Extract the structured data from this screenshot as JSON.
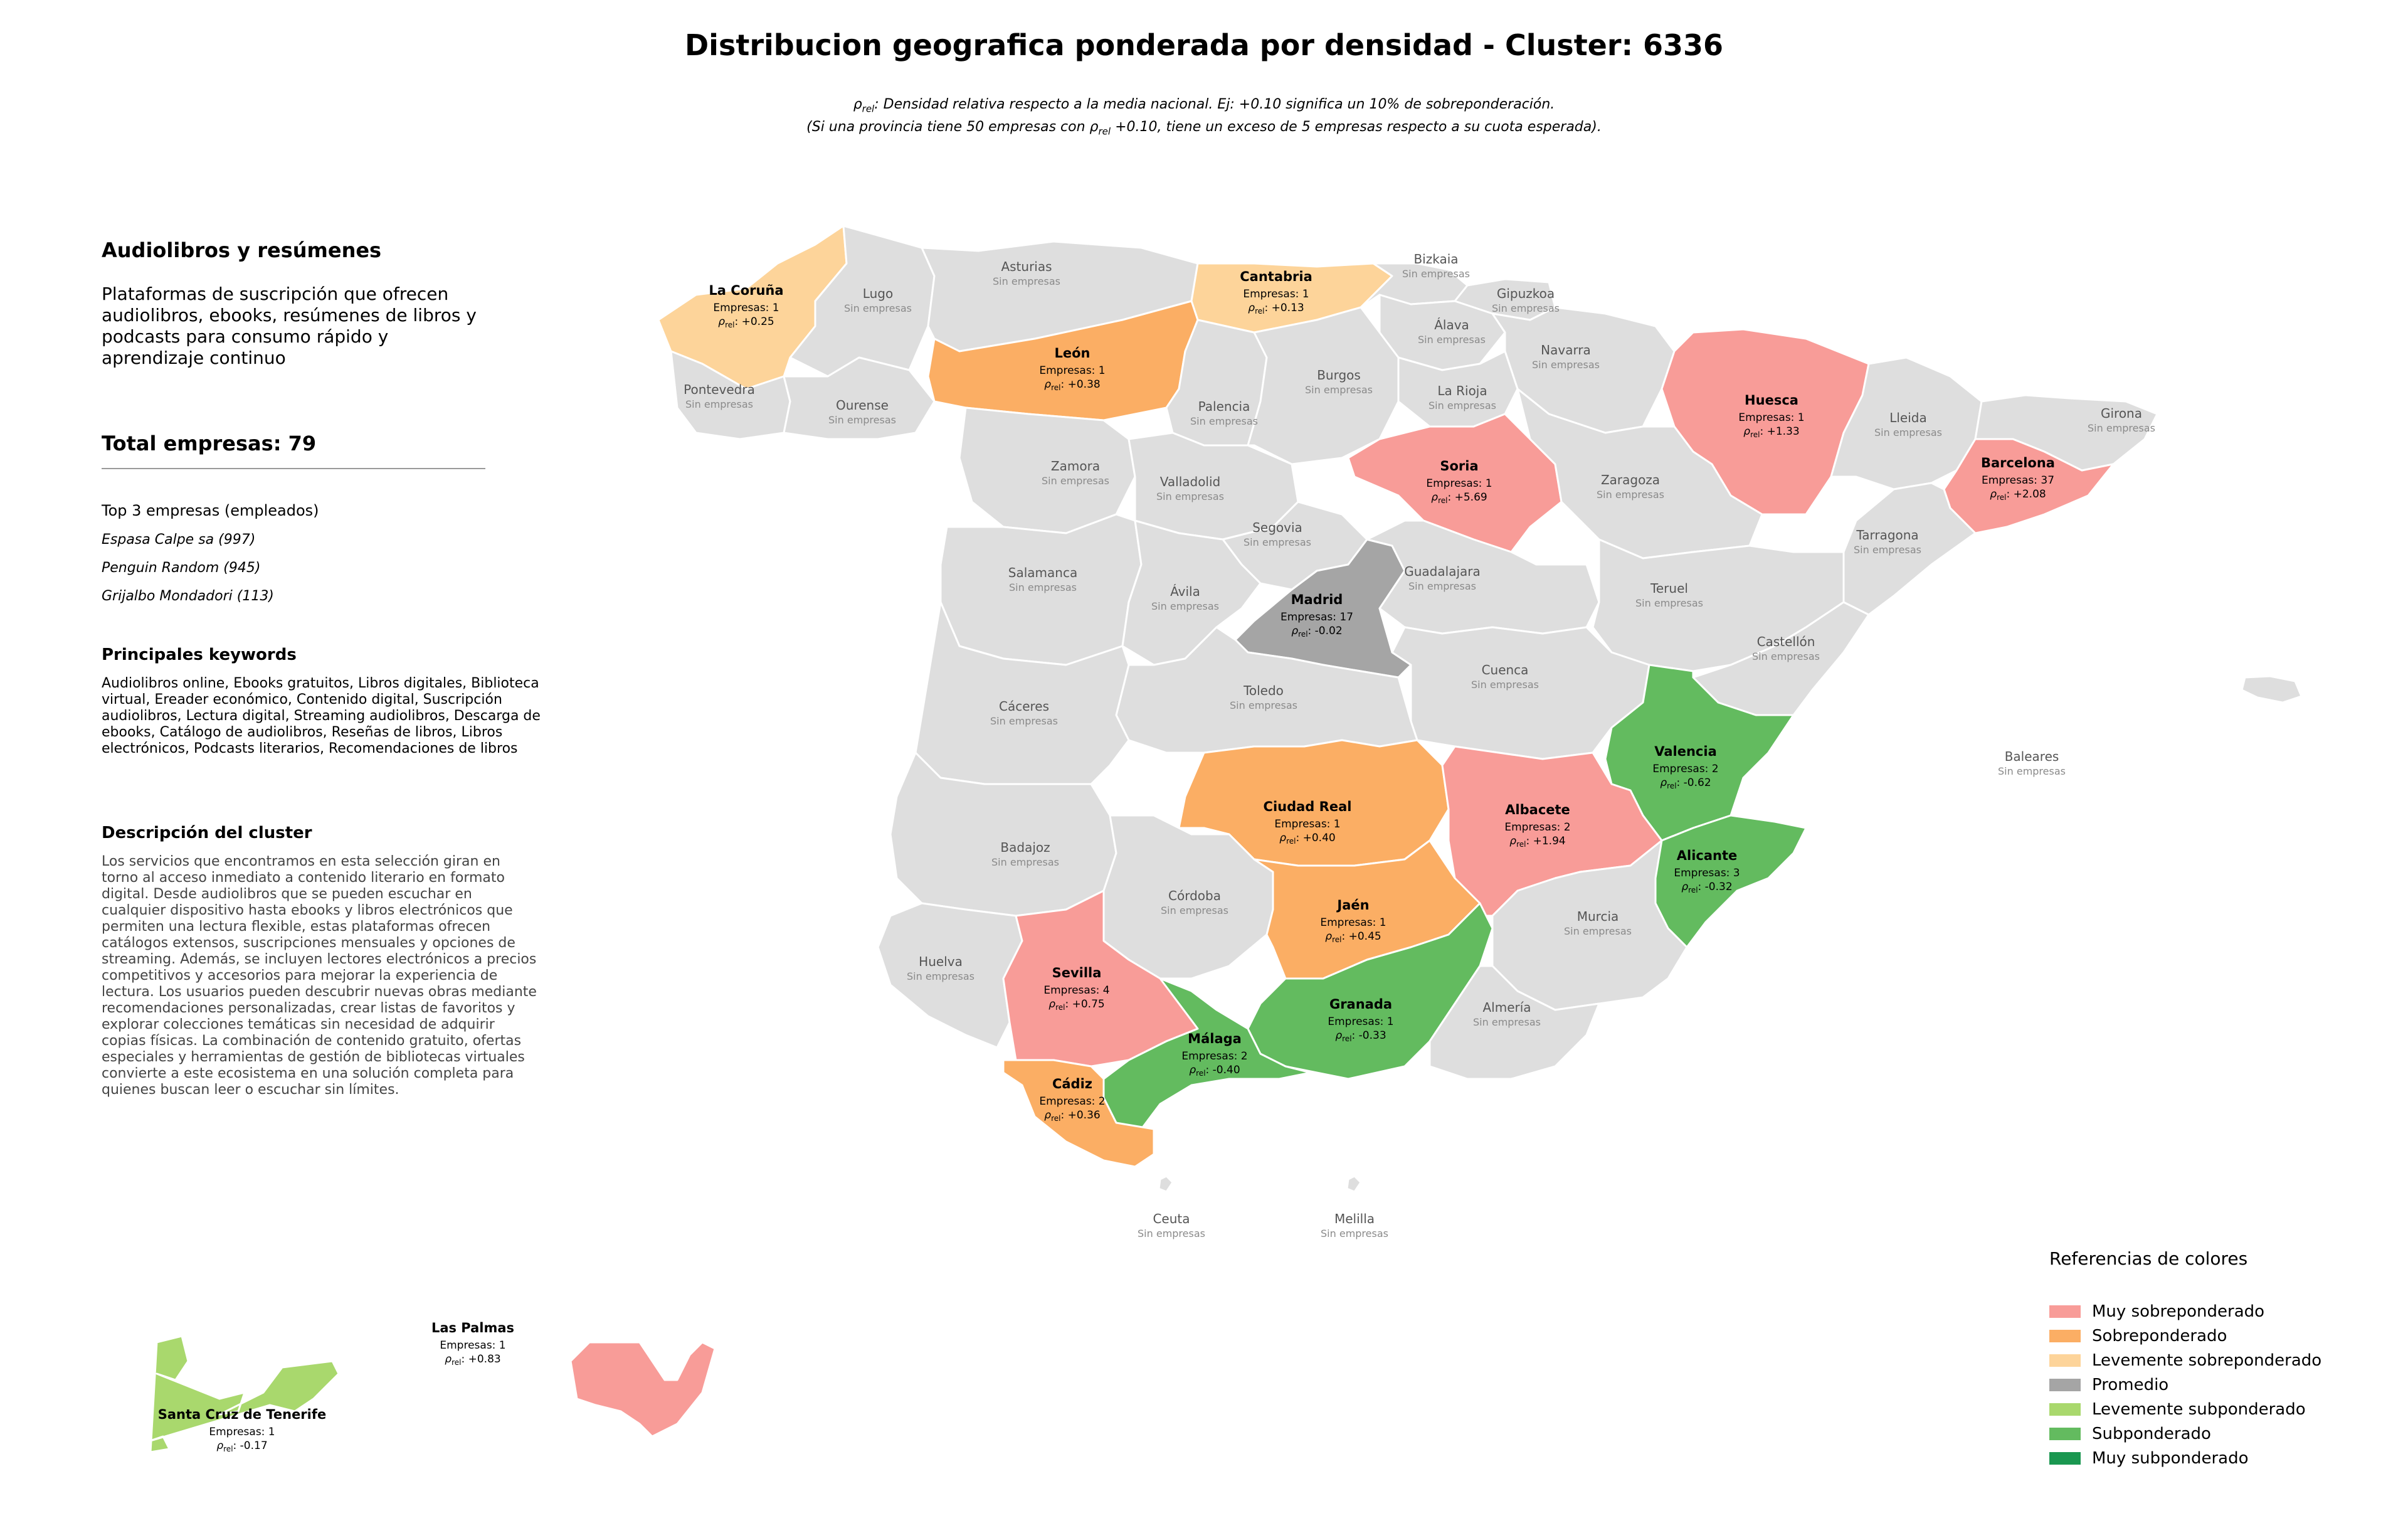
{
  "title": "Distribucion geografica ponderada por densidad - Cluster: 6336",
  "subtitle": {
    "rho_symbol": "ρ",
    "rho_sub": "rel",
    "line1_rest": ": Densidad relativa respecto a la media nacional. Ej: +0.10 significa un 10% de sobreponderación.",
    "line2_pre": "(Si una provincia tiene 50 empresas con ",
    "line2_post": " +0.10, tiene un exceso de 5 empresas respecto a su cuota esperada)."
  },
  "panel": {
    "heading": "Audiolibros y resúmenes",
    "description": "Plataformas de suscripción que ofrecen audiolibros, ebooks, resúmenes de libros y podcasts para consumo rápido y aprendizaje continuo",
    "total": "Total empresas: 79",
    "top3_label": "Top 3 empresas (empleados)",
    "top3": [
      "Espasa Calpe sa (997)",
      "Penguin Random (945)",
      "Grijalbo Mondadori (113)"
    ],
    "keywords_heading": "Principales keywords",
    "keywords": "Audiolibros online, Ebooks gratuitos, Libros digitales, Biblioteca virtual, Ereader económico, Contenido digital, Suscripción audiolibros, Lectura digital, Streaming audiolibros, Descarga de ebooks, Catálogo de audiolibros, Reseñas de libros, Libros electrónicos, Podcasts literarios, Recomendaciones de libros",
    "cluster_heading": "Descripción del cluster",
    "cluster_text": "Los servicios que encontramos en esta selección giran en torno al acceso inmediato a contenido literario en formato digital. Desde audiolibros que se pueden escuchar en cualquier dispositivo hasta ebooks y libros electrónicos que permiten una lectura flexible, estas plataformas ofrecen catálogos extensos, suscripciones mensuales y opciones de streaming. Además, se incluyen lectores electrónicos a precios competitivos y accesorios para mejorar la experiencia de lectura. Los usuarios pueden descubrir nuevas obras mediante recomendaciones personalizadas, crear listas de favoritos y explorar colecciones temáticas sin necesidad de adquirir copias físicas. La combinación de contenido gratuito, ofertas especiales y herramientas de gestión de bibliotecas virtuales convierte a este ecosistema en una solución completa para quienes buscan leer o escuchar sin límites."
  },
  "map_text": {
    "empresas_prefix": "Empresas: ",
    "sin_empresas": "Sin empresas"
  },
  "colors": {
    "muy_sobre": "#f89c98",
    "sobre": "#fbae64",
    "lev_sobre": "#fdd49a",
    "promedio": "#a5a5a5",
    "lev_sub": "#a9d86d",
    "sub": "#63bb5f",
    "muy_sub": "#1a9750",
    "none": "#dedede"
  },
  "provinces": [
    {
      "name": "La Coruña",
      "count": 1,
      "rho": "+0.25",
      "cat": "lev_sobre"
    },
    {
      "name": "Lugo",
      "cat": "none"
    },
    {
      "name": "Asturias",
      "cat": "none"
    },
    {
      "name": "Cantabria",
      "count": 1,
      "rho": "+0.13",
      "cat": "lev_sobre"
    },
    {
      "name": "Bizkaia",
      "cat": "none"
    },
    {
      "name": "Gipuzkoa",
      "cat": "none"
    },
    {
      "name": "Álava",
      "cat": "none"
    },
    {
      "name": "Navarra",
      "cat": "none"
    },
    {
      "name": "Pontevedra",
      "cat": "none"
    },
    {
      "name": "Ourense",
      "cat": "none"
    },
    {
      "name": "León",
      "count": 1,
      "rho": "+0.38",
      "cat": "sobre"
    },
    {
      "name": "Palencia",
      "cat": "none"
    },
    {
      "name": "Burgos",
      "cat": "none"
    },
    {
      "name": "La Rioja",
      "cat": "none"
    },
    {
      "name": "Huesca",
      "count": 1,
      "rho": "+1.33",
      "cat": "muy_sobre"
    },
    {
      "name": "Lleida",
      "cat": "none"
    },
    {
      "name": "Girona",
      "cat": "none"
    },
    {
      "name": "Barcelona",
      "count": 37,
      "rho": "+2.08",
      "cat": "muy_sobre"
    },
    {
      "name": "Zamora",
      "cat": "none"
    },
    {
      "name": "Valladolid",
      "cat": "none"
    },
    {
      "name": "Soria",
      "count": 1,
      "rho": "+5.69",
      "cat": "muy_sobre"
    },
    {
      "name": "Zaragoza",
      "cat": "none"
    },
    {
      "name": "Tarragona",
      "cat": "none"
    },
    {
      "name": "Segovia",
      "cat": "none"
    },
    {
      "name": "Salamanca",
      "cat": "none"
    },
    {
      "name": "Ávila",
      "cat": "none"
    },
    {
      "name": "Madrid",
      "count": 17,
      "rho": "-0.02",
      "cat": "promedio"
    },
    {
      "name": "Guadalajara",
      "cat": "none"
    },
    {
      "name": "Teruel",
      "cat": "none"
    },
    {
      "name": "Castellón",
      "cat": "none"
    },
    {
      "name": "Cuenca",
      "cat": "none"
    },
    {
      "name": "Toledo",
      "cat": "none"
    },
    {
      "name": "Cáceres",
      "cat": "none"
    },
    {
      "name": "Valencia",
      "count": 2,
      "rho": "-0.62",
      "cat": "sub"
    },
    {
      "name": "Baleares",
      "cat": "none"
    },
    {
      "name": "Ciudad Real",
      "count": 1,
      "rho": "+0.40",
      "cat": "sobre"
    },
    {
      "name": "Albacete",
      "count": 2,
      "rho": "+1.94",
      "cat": "muy_sobre"
    },
    {
      "name": "Badajoz",
      "cat": "none"
    },
    {
      "name": "Alicante",
      "count": 3,
      "rho": "-0.32",
      "cat": "sub"
    },
    {
      "name": "Córdoba",
      "cat": "none"
    },
    {
      "name": "Jaén",
      "count": 1,
      "rho": "+0.45",
      "cat": "sobre"
    },
    {
      "name": "Murcia",
      "cat": "none"
    },
    {
      "name": "Huelva",
      "cat": "none"
    },
    {
      "name": "Sevilla",
      "count": 4,
      "rho": "+0.75",
      "cat": "muy_sobre"
    },
    {
      "name": "Granada",
      "count": 1,
      "rho": "-0.33",
      "cat": "sub"
    },
    {
      "name": "Almería",
      "cat": "none"
    },
    {
      "name": "Málaga",
      "count": 2,
      "rho": "-0.40",
      "cat": "sub"
    },
    {
      "name": "Cádiz",
      "count": 2,
      "rho": "+0.36",
      "cat": "sobre"
    },
    {
      "name": "Ceuta",
      "cat": "none"
    },
    {
      "name": "Melilla",
      "cat": "none"
    },
    {
      "name": "Las Palmas",
      "count": 1,
      "rho": "+0.83",
      "cat": "muy_sobre"
    },
    {
      "name": "Santa Cruz de Tenerife",
      "count": 1,
      "rho": "-0.17",
      "cat": "lev_sub"
    }
  ],
  "legend": {
    "title": "Referencias de colores",
    "items": [
      {
        "label": "Muy sobreponderado",
        "color": "#f89c98"
      },
      {
        "label": "Sobreponderado",
        "color": "#fbae64"
      },
      {
        "label": "Levemente sobreponderado",
        "color": "#fdd49a"
      },
      {
        "label": "Promedio",
        "color": "#a5a5a5"
      },
      {
        "label": "Levemente subponderado",
        "color": "#a9d86d"
      },
      {
        "label": "Subponderado",
        "color": "#63bb5f"
      },
      {
        "label": "Muy subponderado",
        "color": "#1a9750"
      }
    ]
  }
}
